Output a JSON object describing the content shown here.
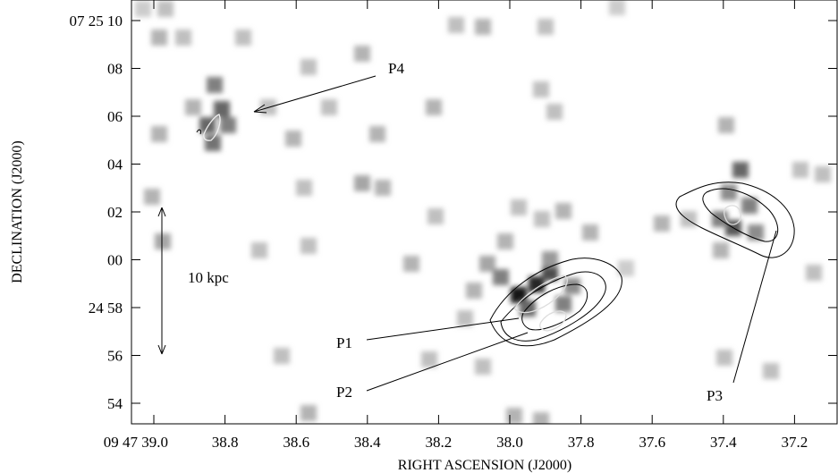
{
  "figure": {
    "x_axis": {
      "label": "RIGHT ASCENSION (J2000)",
      "ticks": [
        "09 47 39.0",
        "38.8",
        "38.6",
        "38.4",
        "38.2",
        "38.0",
        "37.8",
        "37.6",
        "37.4",
        "37.2"
      ]
    },
    "y_axis": {
      "label": "DECLINATION (J2000)",
      "ticks": [
        "07 25 10",
        "08",
        "06",
        "04",
        "02",
        "00",
        "24 58",
        "56",
        "54"
      ]
    },
    "scale_bar": "10 kpc",
    "labels": [
      "P1",
      "P2",
      "P3",
      "P4"
    ]
  }
}
